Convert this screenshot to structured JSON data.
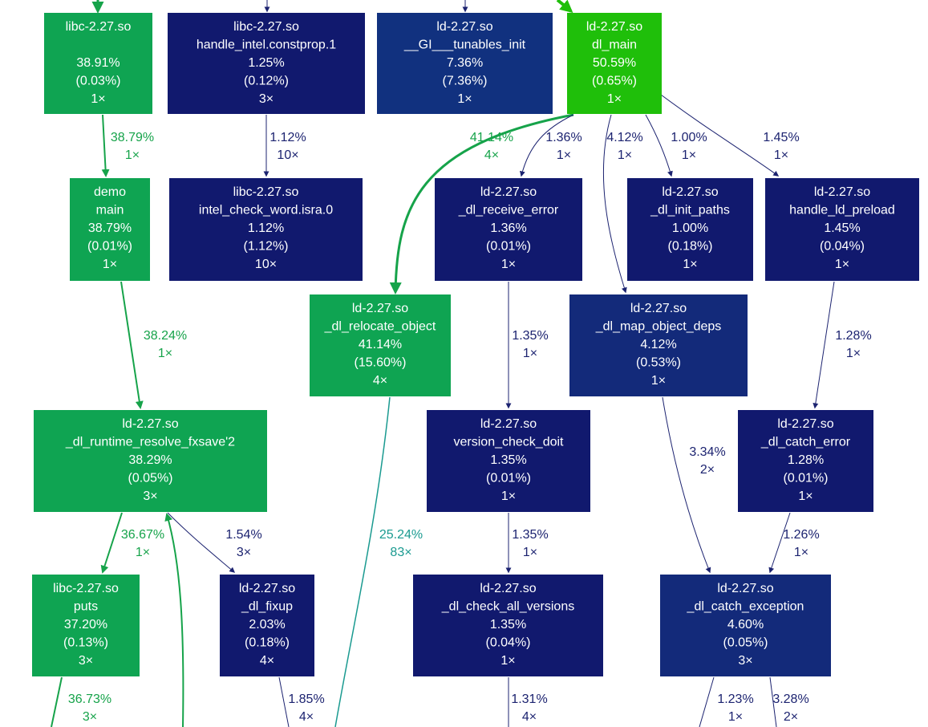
{
  "colors": {
    "green_bright": "#1fbf0a",
    "green": "#0fa452",
    "green_edge": "#16a34a",
    "teal_edge": "#1a9a90",
    "navy": "#11196e",
    "navy_mid": "#132a7a",
    "blue": "#11317f",
    "edge_navy": "#1c2370"
  },
  "nodes": [
    {
      "id": "libc_main",
      "lines": [
        "libc-2.27.so",
        "",
        "38.91%",
        "(0.03%)",
        "1×"
      ],
      "color": "green"
    },
    {
      "id": "handle_intel",
      "lines": [
        "libc-2.27.so",
        "handle_intel.constprop.1",
        "1.25%",
        "(0.12%)",
        "3×"
      ],
      "color": "navy"
    },
    {
      "id": "tunables_init",
      "lines": [
        "ld-2.27.so",
        "__GI___tunables_init",
        "7.36%",
        "(7.36%)",
        "1×"
      ],
      "color": "blue"
    },
    {
      "id": "dl_main",
      "lines": [
        "ld-2.27.so",
        "dl_main",
        "50.59%",
        "(0.65%)",
        "1×"
      ],
      "color": "green_bright"
    },
    {
      "id": "demo_main",
      "lines": [
        "demo",
        "main",
        "38.79%",
        "(0.01%)",
        "1×"
      ],
      "color": "green"
    },
    {
      "id": "intel_check_word",
      "lines": [
        "libc-2.27.so",
        "intel_check_word.isra.0",
        "1.12%",
        "(1.12%)",
        "10×"
      ],
      "color": "navy"
    },
    {
      "id": "dl_receive_error",
      "lines": [
        "ld-2.27.so",
        "_dl_receive_error",
        "1.36%",
        "(0.01%)",
        "1×"
      ],
      "color": "navy"
    },
    {
      "id": "dl_init_paths",
      "lines": [
        "ld-2.27.so",
        "_dl_init_paths",
        "1.00%",
        "(0.18%)",
        "1×"
      ],
      "color": "navy"
    },
    {
      "id": "handle_ld_preload",
      "lines": [
        "ld-2.27.so",
        "handle_ld_preload",
        "1.45%",
        "(0.04%)",
        "1×"
      ],
      "color": "navy"
    },
    {
      "id": "dl_relocate_object",
      "lines": [
        "ld-2.27.so",
        "_dl_relocate_object",
        "41.14%",
        "(15.60%)",
        "4×"
      ],
      "color": "green"
    },
    {
      "id": "dl_map_object_deps",
      "lines": [
        "ld-2.27.so",
        "_dl_map_object_deps",
        "4.12%",
        "(0.53%)",
        "1×"
      ],
      "color": "navy_mid"
    },
    {
      "id": "dl_runtime_resolve",
      "lines": [
        "ld-2.27.so",
        "_dl_runtime_resolve_fxsave'2",
        "38.29%",
        "(0.05%)",
        "3×"
      ],
      "color": "green"
    },
    {
      "id": "version_check_doit",
      "lines": [
        "ld-2.27.so",
        "version_check_doit",
        "1.35%",
        "(0.01%)",
        "1×"
      ],
      "color": "navy"
    },
    {
      "id": "dl_catch_error",
      "lines": [
        "ld-2.27.so",
        "_dl_catch_error",
        "1.28%",
        "(0.01%)",
        "1×"
      ],
      "color": "navy"
    },
    {
      "id": "puts",
      "lines": [
        "libc-2.27.so",
        "puts",
        "37.20%",
        "(0.13%)",
        "3×"
      ],
      "color": "green"
    },
    {
      "id": "dl_fixup",
      "lines": [
        "ld-2.27.so",
        "_dl_fixup",
        "2.03%",
        "(0.18%)",
        "4×"
      ],
      "color": "navy"
    },
    {
      "id": "dl_check_all_versions",
      "lines": [
        "ld-2.27.so",
        "_dl_check_all_versions",
        "1.35%",
        "(0.04%)",
        "1×"
      ],
      "color": "navy"
    },
    {
      "id": "dl_catch_exception",
      "lines": [
        "ld-2.27.so",
        "_dl_catch_exception",
        "4.60%",
        "(0.05%)",
        "3×"
      ],
      "color": "navy_mid"
    }
  ],
  "edges": [
    {
      "id": "e_top_libc",
      "pct": "",
      "calls": "",
      "color": "green_edge",
      "width": 3
    },
    {
      "id": "e_top_handle",
      "pct": "",
      "calls": "",
      "color": "edge_navy",
      "width": 1
    },
    {
      "id": "e_top_tunables",
      "pct": "",
      "calls": "",
      "color": "edge_navy",
      "width": 1
    },
    {
      "id": "e_top_dlmain",
      "pct": "",
      "calls": "",
      "color": "green_bright",
      "width": 4
    },
    {
      "id": "e_libc_demo",
      "pct": "38.79%",
      "calls": "1×",
      "color": "green_edge",
      "width": 2
    },
    {
      "id": "e_handle_intel",
      "pct": "1.12%",
      "calls": "10×",
      "color": "edge_navy",
      "width": 1
    },
    {
      "id": "e_dlmain_reloc",
      "pct": "41.14%",
      "calls": "4×",
      "color": "green_edge",
      "width": 3
    },
    {
      "id": "e_dlmain_recv",
      "pct": "1.36%",
      "calls": "1×",
      "color": "edge_navy",
      "width": 1
    },
    {
      "id": "e_dlmain_map",
      "pct": "4.12%",
      "calls": "1×",
      "color": "edge_navy",
      "width": 1
    },
    {
      "id": "e_dlmain_init",
      "pct": "1.00%",
      "calls": "1×",
      "color": "edge_navy",
      "width": 1
    },
    {
      "id": "e_dlmain_preload",
      "pct": "1.45%",
      "calls": "1×",
      "color": "edge_navy",
      "width": 1
    },
    {
      "id": "e_demo_resolve",
      "pct": "38.24%",
      "calls": "1×",
      "color": "green_edge",
      "width": 2
    },
    {
      "id": "e_recv_version",
      "pct": "1.35%",
      "calls": "1×",
      "color": "edge_navy",
      "width": 1
    },
    {
      "id": "e_preload_catcherr",
      "pct": "1.28%",
      "calls": "1×",
      "color": "edge_navy",
      "width": 1
    },
    {
      "id": "e_map_catchexc",
      "pct": "3.34%",
      "calls": "2×",
      "color": "edge_navy",
      "width": 1
    },
    {
      "id": "e_resolve_puts",
      "pct": "36.67%",
      "calls": "1×",
      "color": "green_edge",
      "width": 2
    },
    {
      "id": "e_resolve_fixup",
      "pct": "1.54%",
      "calls": "3×",
      "color": "edge_navy",
      "width": 1
    },
    {
      "id": "e_reloc_down",
      "pct": "25.24%",
      "calls": "83×",
      "color": "teal_edge",
      "width": 1.5
    },
    {
      "id": "e_version_check",
      "pct": "1.35%",
      "calls": "1×",
      "color": "edge_navy",
      "width": 1
    },
    {
      "id": "e_catcherr_catchexc",
      "pct": "1.26%",
      "calls": "1×",
      "color": "edge_navy",
      "width": 1
    },
    {
      "id": "e_puts_down",
      "pct": "36.73%",
      "calls": "3×",
      "color": "green_edge",
      "width": 2
    },
    {
      "id": "e_up_resolve",
      "pct": "",
      "calls": "",
      "color": "green_edge",
      "width": 2
    },
    {
      "id": "e_fixup_down",
      "pct": "1.85%",
      "calls": "4×",
      "color": "edge_navy",
      "width": 1
    },
    {
      "id": "e_checkall_down",
      "pct": "1.31%",
      "calls": "4×",
      "color": "edge_navy",
      "width": 1
    },
    {
      "id": "e_catchexc_down1",
      "pct": "1.23%",
      "calls": "1×",
      "color": "edge_navy",
      "width": 1
    },
    {
      "id": "e_catchexc_down2",
      "pct": "3.28%",
      "calls": "2×",
      "color": "edge_navy",
      "width": 1
    }
  ]
}
